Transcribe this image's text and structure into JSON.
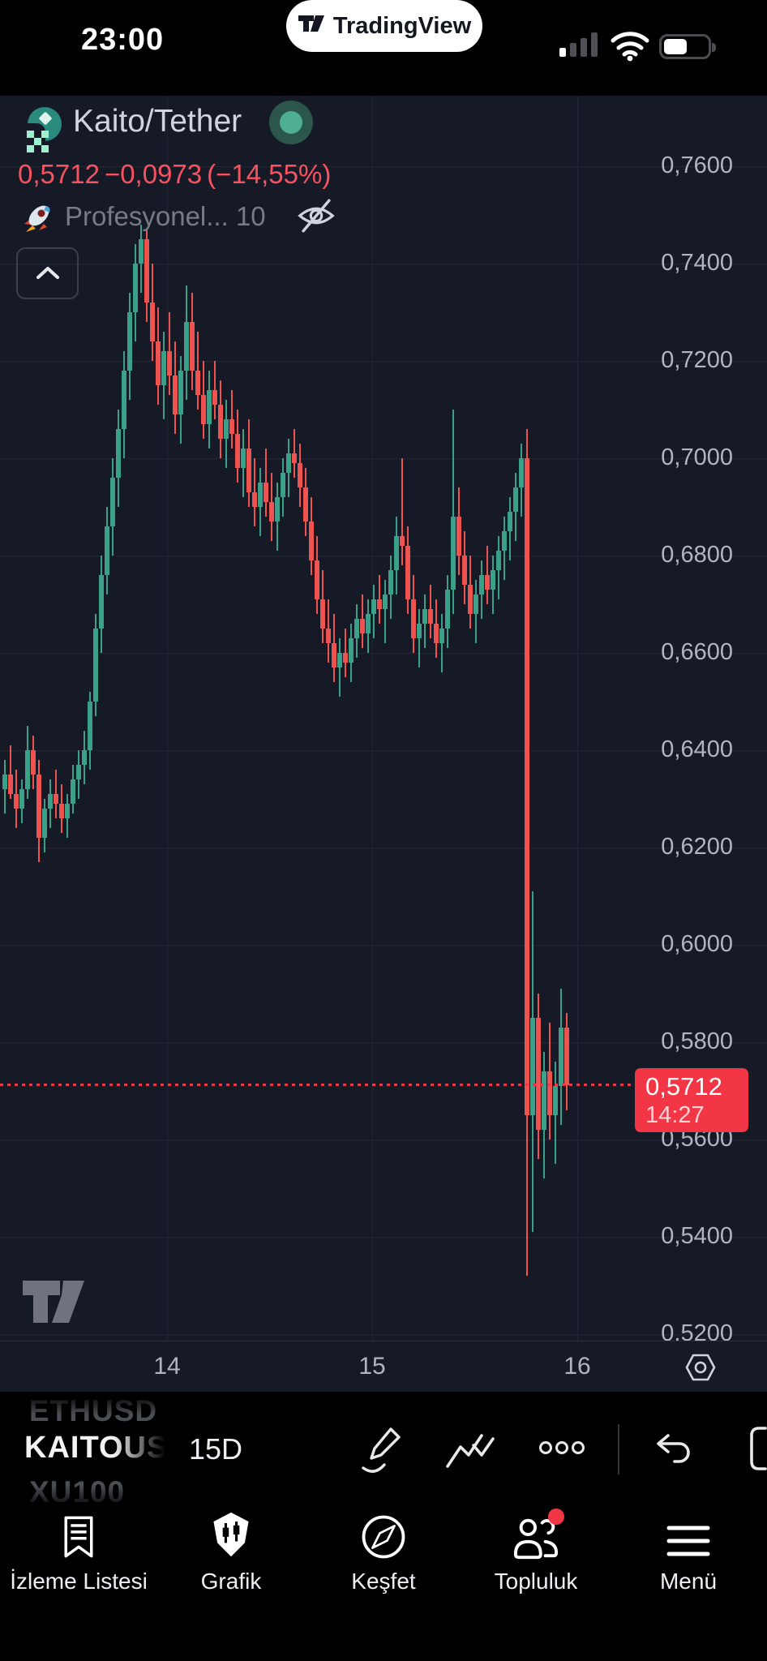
{
  "status_bar": {
    "time": "23:00",
    "brand": "TradingView"
  },
  "header": {
    "symbol": "Kaito/Tether",
    "last_price": "0,5712",
    "change": "−0,0973",
    "change_pct": "(−14,55%)",
    "strategy": "Profesyonel... 10"
  },
  "price_label": {
    "price": "0,5712",
    "countdown": "14:27"
  },
  "toolbar": {
    "symbol_prev": "ETHUSD",
    "symbol_current": "KAITOUS",
    "symbol_next": "XU100",
    "interval": "15D"
  },
  "nav": {
    "items": [
      {
        "label": "İzleme Listesi"
      },
      {
        "label": "Grafik"
      },
      {
        "label": "Keşfet"
      },
      {
        "label": "Topluluk"
      },
      {
        "label": "Menü"
      }
    ]
  },
  "colors": {
    "up": "#3aa188",
    "down": "#ef5350",
    "accent_red": "#f23645",
    "axis_text": "#b2b5be",
    "chart_bg": "#161a27"
  },
  "chart_data": {
    "type": "candlestick",
    "title": "Kaito/Tether",
    "interval": "15D",
    "last_price": 0.5712,
    "last_time": "14:27",
    "change": -0.0973,
    "change_pct": -14.55,
    "ylim": [
      0.5187,
      0.7745
    ],
    "grid": true,
    "y_ticks": [
      {
        "value": 0.76,
        "label": "0,7600"
      },
      {
        "value": 0.74,
        "label": "0,7400"
      },
      {
        "value": 0.72,
        "label": "0,7200"
      },
      {
        "value": 0.7,
        "label": "0,7000"
      },
      {
        "value": 0.68,
        "label": "0,6800"
      },
      {
        "value": 0.66,
        "label": "0,6600"
      },
      {
        "value": 0.64,
        "label": "0,6400"
      },
      {
        "value": 0.62,
        "label": "0,6200"
      },
      {
        "value": 0.6,
        "label": "0,6000"
      },
      {
        "value": 0.58,
        "label": "0,5800"
      },
      {
        "value": 0.56,
        "label": "0,5600"
      },
      {
        "value": 0.54,
        "label": "0,5400"
      },
      {
        "value": 0.52,
        "label": "0,5200"
      }
    ],
    "x_ticks": [
      {
        "label": "14"
      },
      {
        "label": "15"
      },
      {
        "label": "16"
      }
    ],
    "candles_ohlc": [
      [
        0.632,
        0.638,
        0.627,
        0.635
      ],
      [
        0.635,
        0.641,
        0.63,
        0.631
      ],
      [
        0.631,
        0.636,
        0.624,
        0.628
      ],
      [
        0.628,
        0.634,
        0.625,
        0.632
      ],
      [
        0.632,
        0.645,
        0.63,
        0.64
      ],
      [
        0.64,
        0.643,
        0.632,
        0.635
      ],
      [
        0.635,
        0.638,
        0.617,
        0.622
      ],
      [
        0.622,
        0.63,
        0.619,
        0.628
      ],
      [
        0.628,
        0.634,
        0.624,
        0.631
      ],
      [
        0.631,
        0.636,
        0.626,
        0.629
      ],
      [
        0.629,
        0.633,
        0.623,
        0.626
      ],
      [
        0.626,
        0.631,
        0.622,
        0.629
      ],
      [
        0.629,
        0.637,
        0.627,
        0.634
      ],
      [
        0.634,
        0.64,
        0.63,
        0.637
      ],
      [
        0.637,
        0.644,
        0.633,
        0.64
      ],
      [
        0.64,
        0.652,
        0.636,
        0.65
      ],
      [
        0.65,
        0.668,
        0.647,
        0.665
      ],
      [
        0.665,
        0.68,
        0.66,
        0.676
      ],
      [
        0.676,
        0.69,
        0.672,
        0.686
      ],
      [
        0.686,
        0.7,
        0.68,
        0.696
      ],
      [
        0.696,
        0.71,
        0.69,
        0.706
      ],
      [
        0.706,
        0.722,
        0.7,
        0.718
      ],
      [
        0.718,
        0.734,
        0.712,
        0.73
      ],
      [
        0.73,
        0.744,
        0.724,
        0.74
      ],
      [
        0.74,
        0.748,
        0.734,
        0.745
      ],
      [
        0.745,
        0.747,
        0.728,
        0.732
      ],
      [
        0.732,
        0.74,
        0.72,
        0.724
      ],
      [
        0.724,
        0.731,
        0.711,
        0.715
      ],
      [
        0.715,
        0.726,
        0.708,
        0.722
      ],
      [
        0.722,
        0.73,
        0.713,
        0.717
      ],
      [
        0.717,
        0.724,
        0.705,
        0.709
      ],
      [
        0.709,
        0.721,
        0.703,
        0.718
      ],
      [
        0.718,
        0.7355,
        0.712,
        0.728
      ],
      [
        0.728,
        0.734,
        0.714,
        0.718
      ],
      [
        0.718,
        0.726,
        0.71,
        0.713
      ],
      [
        0.713,
        0.72,
        0.704,
        0.707
      ],
      [
        0.707,
        0.718,
        0.702,
        0.714
      ],
      [
        0.714,
        0.72,
        0.708,
        0.711
      ],
      [
        0.711,
        0.716,
        0.7,
        0.704
      ],
      [
        0.704,
        0.712,
        0.698,
        0.708
      ],
      [
        0.708,
        0.714,
        0.702,
        0.705
      ],
      [
        0.705,
        0.71,
        0.695,
        0.698
      ],
      [
        0.698,
        0.706,
        0.692,
        0.702
      ],
      [
        0.702,
        0.708,
        0.69,
        0.693
      ],
      [
        0.693,
        0.7,
        0.686,
        0.69
      ],
      [
        0.69,
        0.698,
        0.684,
        0.695
      ],
      [
        0.695,
        0.702,
        0.688,
        0.691
      ],
      [
        0.691,
        0.697,
        0.683,
        0.687
      ],
      [
        0.687,
        0.695,
        0.681,
        0.692
      ],
      [
        0.692,
        0.7,
        0.688,
        0.697
      ],
      [
        0.697,
        0.704,
        0.692,
        0.701
      ],
      [
        0.701,
        0.706,
        0.696,
        0.699
      ],
      [
        0.699,
        0.703,
        0.69,
        0.694
      ],
      [
        0.694,
        0.698,
        0.684,
        0.687
      ],
      [
        0.687,
        0.692,
        0.676,
        0.679
      ],
      [
        0.679,
        0.684,
        0.668,
        0.671
      ],
      [
        0.671,
        0.677,
        0.662,
        0.665
      ],
      [
        0.665,
        0.671,
        0.658,
        0.662
      ],
      [
        0.662,
        0.668,
        0.654,
        0.657
      ],
      [
        0.657,
        0.663,
        0.651,
        0.66
      ],
      [
        0.66,
        0.665,
        0.655,
        0.658
      ],
      [
        0.658,
        0.666,
        0.654,
        0.663
      ],
      [
        0.663,
        0.67,
        0.659,
        0.667
      ],
      [
        0.667,
        0.672,
        0.661,
        0.664
      ],
      [
        0.664,
        0.671,
        0.66,
        0.668
      ],
      [
        0.668,
        0.674,
        0.663,
        0.671
      ],
      [
        0.671,
        0.676,
        0.666,
        0.669
      ],
      [
        0.669,
        0.675,
        0.662,
        0.672
      ],
      [
        0.672,
        0.68,
        0.667,
        0.677
      ],
      [
        0.677,
        0.688,
        0.672,
        0.684
      ],
      [
        0.684,
        0.7,
        0.678,
        0.682
      ],
      [
        0.682,
        0.686,
        0.668,
        0.671
      ],
      [
        0.671,
        0.676,
        0.66,
        0.663
      ],
      [
        0.663,
        0.669,
        0.657,
        0.666
      ],
      [
        0.666,
        0.672,
        0.661,
        0.669
      ],
      [
        0.669,
        0.674,
        0.663,
        0.666
      ],
      [
        0.666,
        0.671,
        0.659,
        0.662
      ],
      [
        0.662,
        0.668,
        0.656,
        0.665
      ],
      [
        0.665,
        0.676,
        0.661,
        0.673
      ],
      [
        0.673,
        0.71,
        0.668,
        0.688
      ],
      [
        0.688,
        0.694,
        0.676,
        0.68
      ],
      [
        0.68,
        0.685,
        0.67,
        0.674
      ],
      [
        0.674,
        0.68,
        0.665,
        0.668
      ],
      [
        0.668,
        0.675,
        0.662,
        0.672
      ],
      [
        0.672,
        0.679,
        0.667,
        0.676
      ],
      [
        0.676,
        0.682,
        0.67,
        0.673
      ],
      [
        0.673,
        0.68,
        0.668,
        0.677
      ],
      [
        0.677,
        0.684,
        0.671,
        0.681
      ],
      [
        0.681,
        0.688,
        0.675,
        0.685
      ],
      [
        0.685,
        0.692,
        0.679,
        0.689
      ],
      [
        0.689,
        0.697,
        0.683,
        0.694
      ],
      [
        0.694,
        0.703,
        0.688,
        0.7
      ],
      [
        0.7,
        0.706,
        0.532,
        0.565
      ],
      [
        0.565,
        0.611,
        0.541,
        0.585
      ],
      [
        0.585,
        0.59,
        0.556,
        0.562
      ],
      [
        0.562,
        0.578,
        0.552,
        0.574
      ],
      [
        0.574,
        0.584,
        0.56,
        0.565
      ],
      [
        0.565,
        0.576,
        0.555,
        0.571
      ],
      [
        0.571,
        0.591,
        0.563,
        0.583
      ],
      [
        0.583,
        0.586,
        0.566,
        0.5712
      ]
    ]
  }
}
